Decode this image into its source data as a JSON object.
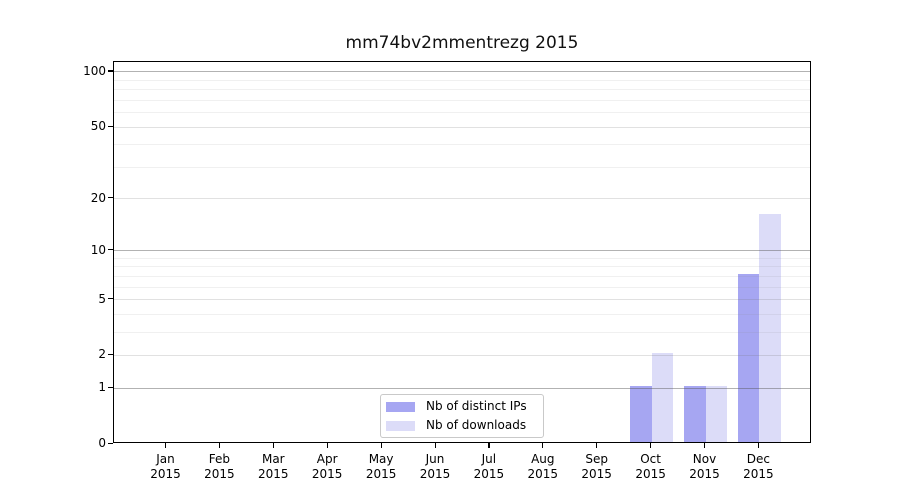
{
  "chart_data": {
    "type": "bar",
    "title": "mm74bv2mmentrezg 2015",
    "year": "2015",
    "months": [
      "Jan",
      "Feb",
      "Mar",
      "Apr",
      "May",
      "Jun",
      "Jul",
      "Aug",
      "Sep",
      "Oct",
      "Nov",
      "Dec"
    ],
    "categories": [
      "Jan 2015",
      "Feb 2015",
      "Mar 2015",
      "Apr 2015",
      "May 2015",
      "Jun 2015",
      "Jul 2015",
      "Aug 2015",
      "Sep 2015",
      "Oct 2015",
      "Nov 2015",
      "Dec 2015"
    ],
    "series": [
      {
        "name": "Nb of distinct IPs",
        "color": "#a6a6f2",
        "values": [
          0,
          0,
          0,
          0,
          0,
          0,
          0,
          0,
          0,
          1,
          1,
          7
        ]
      },
      {
        "name": "Nb of downloads",
        "color": "#dcdcf8",
        "values": [
          0,
          0,
          0,
          0,
          0,
          0,
          0,
          0,
          0,
          2,
          1,
          16
        ]
      }
    ],
    "y_axis": {
      "scale": "log10(1+x)",
      "tick_labels": [
        0,
        1,
        2,
        5,
        10,
        20,
        50,
        100
      ],
      "emphasized_gridlines": [
        1,
        10,
        100
      ],
      "light_gridlines": [
        2,
        5,
        20,
        50
      ],
      "minor_gridlines": [
        3,
        4,
        6,
        7,
        8,
        9,
        30,
        40,
        60,
        70,
        80,
        90
      ],
      "top_value": 112
    },
    "xlabel": "",
    "ylabel": "",
    "grid": true,
    "legend_position": "lower center"
  },
  "colors": {
    "bar_distinct_ips": "#a6a6f2",
    "bar_downloads": "#dcdcf8",
    "grid_emphasis": "rgba(85,85,85,0.45)",
    "grid_light": "rgba(120,120,120,0.22)",
    "grid_minor": "rgba(140,140,140,0.13)",
    "spine": "#000000",
    "legend_border": "#c9c9c9",
    "background": "#ffffff"
  }
}
